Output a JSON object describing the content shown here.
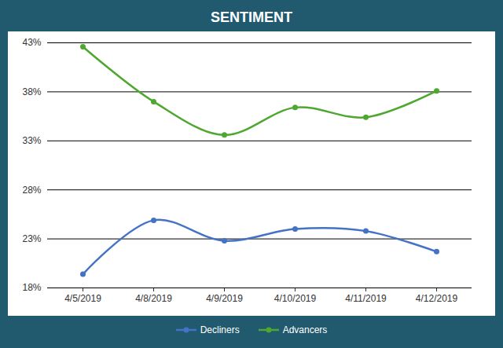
{
  "chart_data": {
    "type": "line",
    "title": "SENTIMENT",
    "categories": [
      "4/5/2019",
      "4/8/2019",
      "4/9/2019",
      "4/10/2019",
      "4/11/2019",
      "4/12/2019"
    ],
    "series": [
      {
        "name": "Decliners",
        "color": "#4472c4",
        "marker": "circle",
        "line_style": "solid",
        "values": [
          19.4,
          24.9,
          22.8,
          24.0,
          23.8,
          21.7
        ]
      },
      {
        "name": "Advancers",
        "color": "#4ea72e",
        "marker": "circle",
        "line_style": "solid",
        "values": [
          42.6,
          37.0,
          33.6,
          36.4,
          35.4,
          38.1
        ]
      }
    ],
    "ylim": [
      18,
      43
    ],
    "yticks": [
      {
        "value": 18,
        "label": "18%"
      },
      {
        "value": 23,
        "label": "23%"
      },
      {
        "value": 28,
        "label": "28%"
      },
      {
        "value": 33,
        "label": "33%"
      },
      {
        "value": 38,
        "label": "38%"
      },
      {
        "value": 43,
        "label": "43%"
      }
    ],
    "grid": true,
    "legend": "bottom"
  }
}
